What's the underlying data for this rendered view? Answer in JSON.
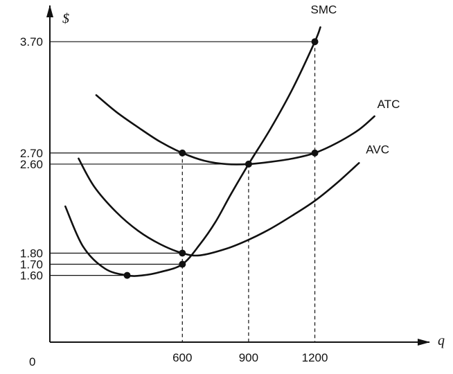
{
  "chart_data": {
    "type": "line",
    "title": "",
    "xlabel": "q",
    "ylabel": "$",
    "origin_label": "0",
    "x_ticks": [
      600,
      900,
      1200
    ],
    "y_ticks": [
      1.6,
      1.7,
      1.8,
      2.6,
      2.7,
      3.7
    ],
    "y_tick_labels": [
      "1.60",
      "1.70",
      "1.80",
      "2.60",
      "2.70",
      "3.70"
    ],
    "xlim": [
      0,
      1650
    ],
    "ylim": [
      1.0,
      4.0
    ],
    "grid": false,
    "legend": "none",
    "series": [
      {
        "name": "SMC",
        "x": [
          70,
          150,
          250,
          350,
          420,
          500,
          600,
          680,
          750,
          820,
          900,
          1000,
          1100,
          1200,
          1225
        ],
        "y": [
          2.22,
          1.86,
          1.66,
          1.6,
          1.6,
          1.63,
          1.7,
          1.88,
          2.08,
          2.33,
          2.6,
          2.92,
          3.28,
          3.7,
          3.83
        ]
      },
      {
        "name": "ATC",
        "x": [
          210,
          300,
          400,
          500,
          600,
          700,
          800,
          900,
          1000,
          1100,
          1200,
          1300,
          1400,
          1470
        ],
        "y": [
          3.22,
          3.07,
          2.93,
          2.8,
          2.7,
          2.63,
          2.6,
          2.6,
          2.62,
          2.65,
          2.7,
          2.79,
          2.91,
          3.03
        ]
      },
      {
        "name": "AVC",
        "x": [
          130,
          200,
          300,
          400,
          500,
          600,
          680,
          800,
          900,
          1000,
          1100,
          1200,
          1300,
          1400
        ],
        "y": [
          2.65,
          2.4,
          2.17,
          2.0,
          1.88,
          1.8,
          1.78,
          1.84,
          1.92,
          2.02,
          2.14,
          2.27,
          2.43,
          2.61
        ]
      }
    ],
    "marked_points": [
      {
        "x": 350,
        "y": 1.6
      },
      {
        "x": 600,
        "y": 1.7
      },
      {
        "x": 600,
        "y": 1.8
      },
      {
        "x": 600,
        "y": 2.7
      },
      {
        "x": 900,
        "y": 2.6
      },
      {
        "x": 1200,
        "y": 2.7
      },
      {
        "x": 1200,
        "y": 3.7
      }
    ],
    "reference_lines": {
      "horizontal_solid": [
        {
          "y": 3.7,
          "to_x": 1200
        },
        {
          "y": 2.7,
          "to_x": 1200
        },
        {
          "y": 2.6,
          "to_x": 900
        },
        {
          "y": 1.8,
          "to_x": 600
        },
        {
          "y": 1.7,
          "to_x": 600
        },
        {
          "y": 1.6,
          "to_x": 350
        }
      ],
      "vertical_dashed": [
        {
          "x": 600,
          "from_y": 2.7
        },
        {
          "x": 900,
          "from_y": 2.6
        },
        {
          "x": 1200,
          "from_y": 3.7
        }
      ]
    },
    "colors": {
      "curve": "#111111",
      "axis": "#111111",
      "reference": "#111111",
      "point": "#111111"
    }
  }
}
